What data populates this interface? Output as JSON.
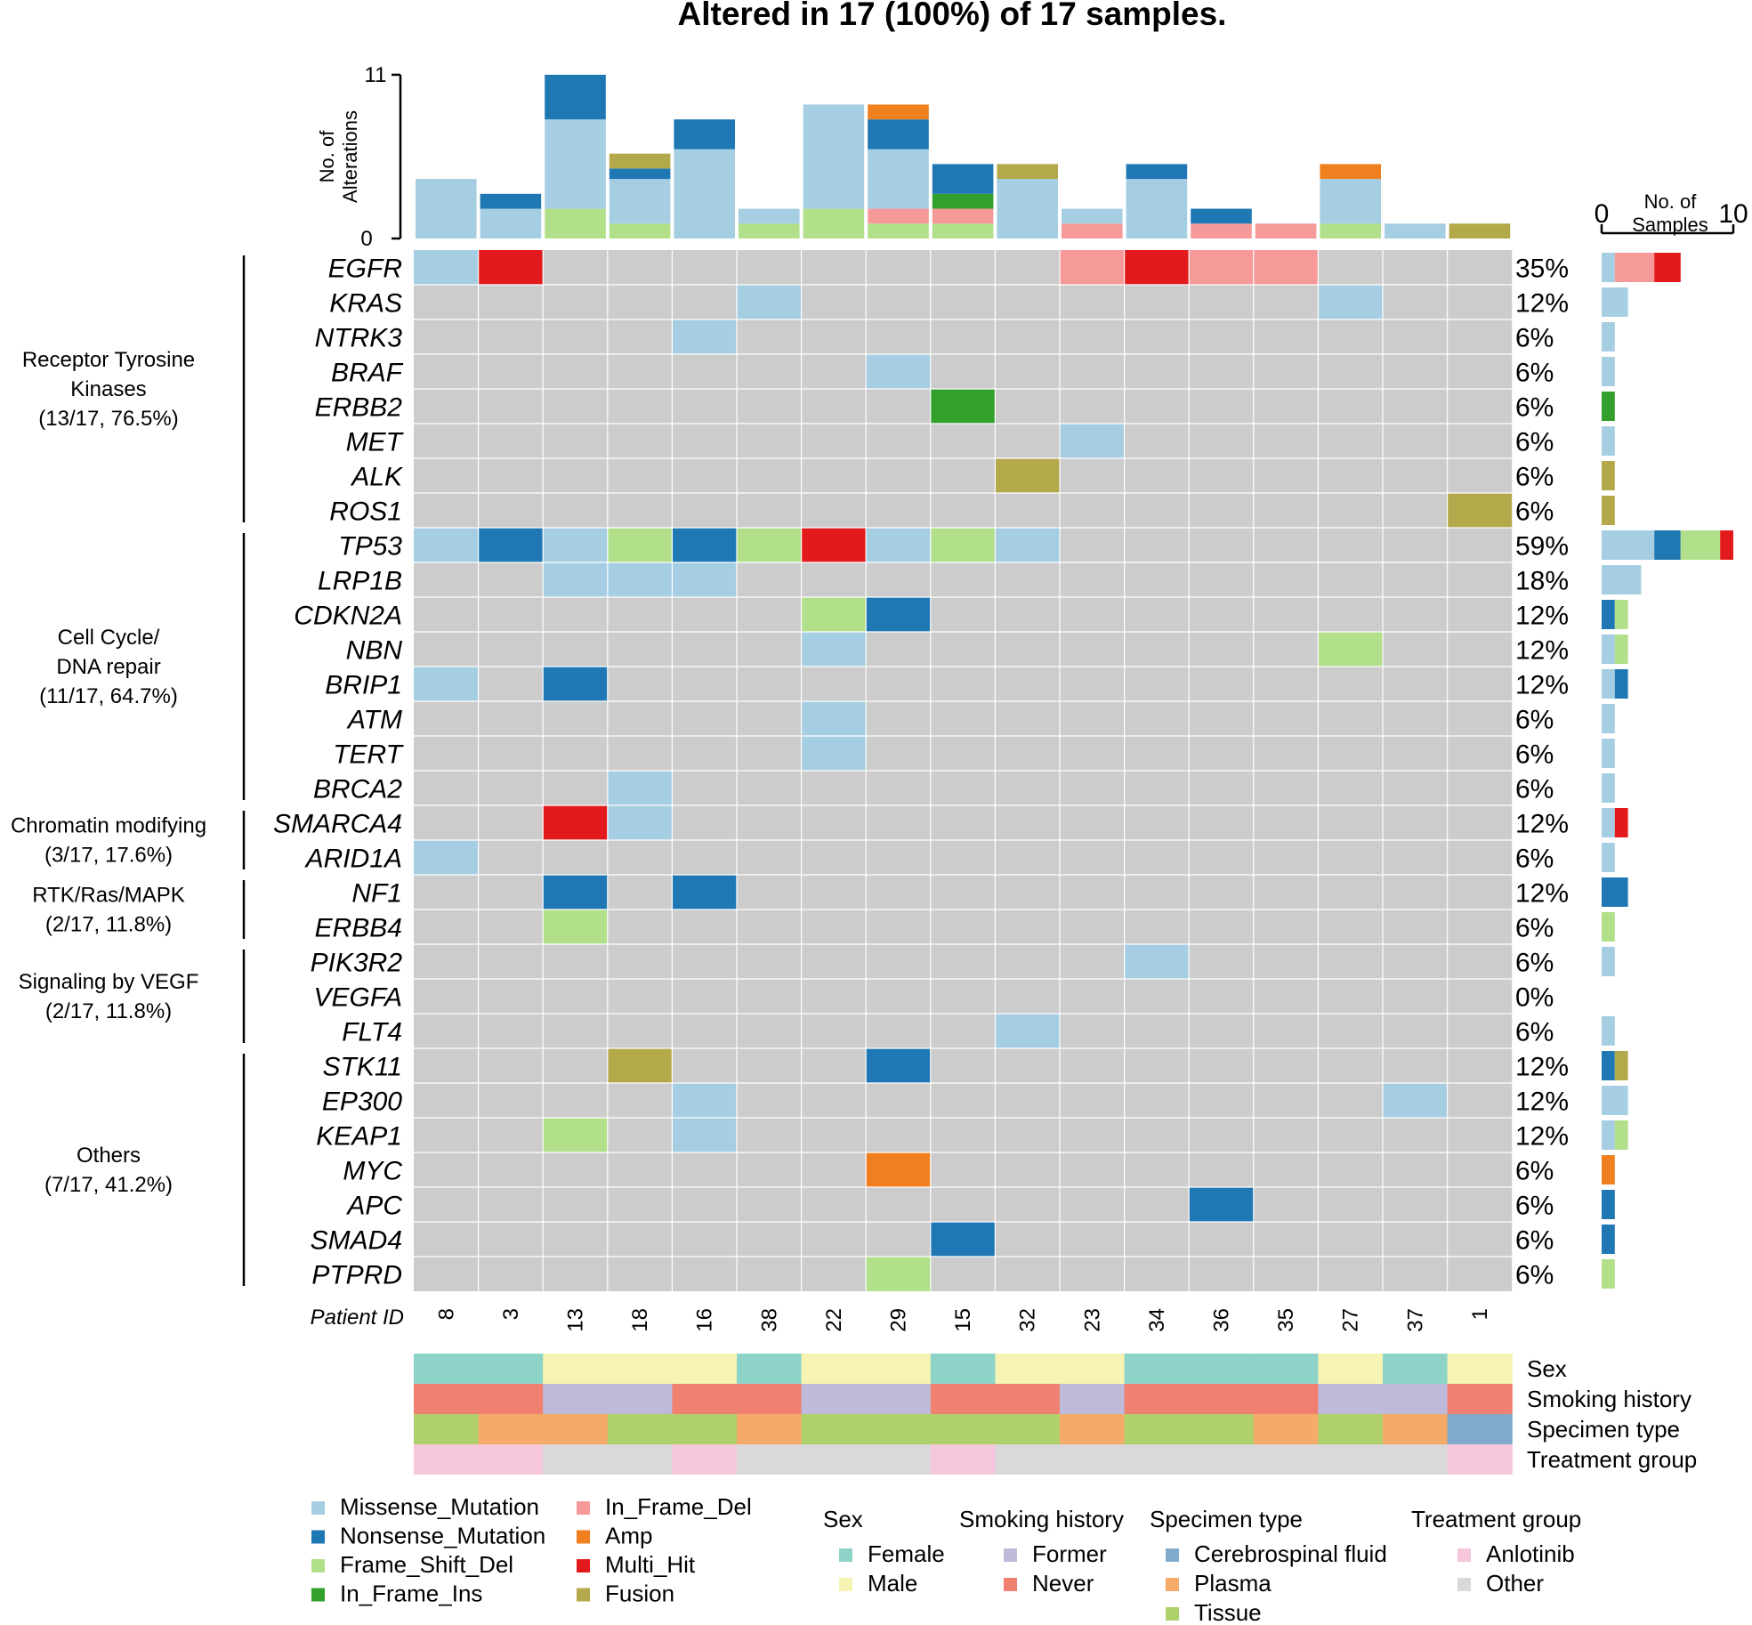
{
  "title": "Altered in 17 (100%) of 17 samples.",
  "colors": {
    "Missense_Mutation": "#a6cee3",
    "Nonsense_Mutation": "#1f78b4",
    "Frame_Shift_Del": "#b2df8a",
    "In_Frame_Ins": "#33a02c",
    "In_Frame_Del": "#f59999",
    "Amp": "#f07f1f",
    "Multi_Hit": "#e31a1c",
    "Fusion": "#b4a94a",
    "background": "#cccccc",
    "Female": "#8dd3c7",
    "Male": "#f7f4b3",
    "Former": "#bebada",
    "Never": "#f08070",
    "Cerebrospinal fluid": "#80aacc",
    "Plasma": "#f4aa68",
    "Tissue": "#aed16b",
    "Anlotinib": "#f5c6dc",
    "Other": "#d9d9d9"
  },
  "chart_data": {
    "type": "heatmap",
    "subtype": "oncoplot",
    "title": "Altered in 17 (100%) of 17 samples.",
    "samples": [
      "8",
      "3",
      "13",
      "18",
      "16",
      "38",
      "22",
      "29",
      "15",
      "32",
      "23",
      "34",
      "36",
      "35",
      "27",
      "37",
      "1"
    ],
    "sample_axis_label": "Patient ID",
    "variant_types": [
      "Missense_Mutation",
      "Nonsense_Mutation",
      "Frame_Shift_Del",
      "In_Frame_Ins",
      "In_Frame_Del",
      "Amp",
      "Multi_Hit",
      "Fusion"
    ],
    "top_bar": {
      "ylabel_line1": "No. of",
      "ylabel_line2": "Alterations",
      "ylim": [
        0,
        11
      ],
      "ticks": [
        "0",
        "11"
      ],
      "stack_order": [
        "Frame_Shift_Del",
        "In_Frame_Del",
        "In_Frame_Ins",
        "Missense_Mutation",
        "Nonsense_Mutation",
        "Fusion",
        "Amp"
      ],
      "values": {
        "8": {
          "Missense_Mutation": 4
        },
        "3": {
          "Missense_Mutation": 2,
          "Nonsense_Mutation": 1
        },
        "13": {
          "Frame_Shift_Del": 2,
          "Missense_Mutation": 6,
          "Nonsense_Mutation": 3
        },
        "18": {
          "Frame_Shift_Del": 1,
          "Missense_Mutation": 3,
          "Nonsense_Mutation": 0.7,
          "Fusion": 1
        },
        "16": {
          "Missense_Mutation": 6,
          "Nonsense_Mutation": 2
        },
        "38": {
          "Frame_Shift_Del": 1,
          "Missense_Mutation": 1
        },
        "22": {
          "Frame_Shift_Del": 2,
          "Missense_Mutation": 7
        },
        "29": {
          "Frame_Shift_Del": 1,
          "In_Frame_Del": 1,
          "Missense_Mutation": 4,
          "Nonsense_Mutation": 2,
          "Amp": 1
        },
        "15": {
          "Frame_Shift_Del": 1,
          "In_Frame_Del": 1,
          "In_Frame_Ins": 1,
          "Nonsense_Mutation": 2
        },
        "32": {
          "Missense_Mutation": 4,
          "Fusion": 1
        },
        "23": {
          "In_Frame_Del": 1,
          "Missense_Mutation": 1
        },
        "34": {
          "Missense_Mutation": 4,
          "Nonsense_Mutation": 1
        },
        "36": {
          "In_Frame_Del": 1,
          "Nonsense_Mutation": 1
        },
        "35": {
          "In_Frame_Del": 1
        },
        "27": {
          "Frame_Shift_Del": 1,
          "Missense_Mutation": 3,
          "Amp": 1
        },
        "37": {
          "Missense_Mutation": 1
        },
        "1": {
          "Fusion": 1
        }
      }
    },
    "side_bar": {
      "xlabel_line1": "No. of",
      "xlabel_line2": "Samples",
      "xlim": [
        0,
        10
      ],
      "ticks": [
        "0",
        "10"
      ]
    },
    "genes": [
      {
        "name": "EGFR",
        "pct": "35%",
        "cells": {
          "8": "Missense_Mutation",
          "3": "Multi_Hit",
          "23": "In_Frame_Del",
          "34": "Multi_Hit",
          "36": "In_Frame_Del",
          "35": "In_Frame_Del"
        },
        "side": [
          [
            "Missense_Mutation",
            1
          ],
          [
            "In_Frame_Del",
            3
          ],
          [
            "Multi_Hit",
            2
          ]
        ]
      },
      {
        "name": "KRAS",
        "pct": "12%",
        "cells": {
          "38": "Missense_Mutation",
          "27": "Missense_Mutation"
        },
        "side": [
          [
            "Missense_Mutation",
            2
          ]
        ]
      },
      {
        "name": "NTRK3",
        "pct": "6%",
        "cells": {
          "16": "Missense_Mutation"
        },
        "side": [
          [
            "Missense_Mutation",
            1
          ]
        ]
      },
      {
        "name": "BRAF",
        "pct": "6%",
        "cells": {
          "29": "Missense_Mutation"
        },
        "side": [
          [
            "Missense_Mutation",
            1
          ]
        ]
      },
      {
        "name": "ERBB2",
        "pct": "6%",
        "cells": {
          "15": "In_Frame_Ins"
        },
        "side": [
          [
            "In_Frame_Ins",
            1
          ]
        ]
      },
      {
        "name": "MET",
        "pct": "6%",
        "cells": {
          "23": "Missense_Mutation"
        },
        "side": [
          [
            "Missense_Mutation",
            1
          ]
        ]
      },
      {
        "name": "ALK",
        "pct": "6%",
        "cells": {
          "32": "Fusion"
        },
        "side": [
          [
            "Fusion",
            1
          ]
        ]
      },
      {
        "name": "ROS1",
        "pct": "6%",
        "cells": {
          "1": "Fusion"
        },
        "side": [
          [
            "Fusion",
            1
          ]
        ]
      },
      {
        "name": "TP53",
        "pct": "59%",
        "cells": {
          "8": "Missense_Mutation",
          "3": "Nonsense_Mutation",
          "13": "Missense_Mutation",
          "18": "Frame_Shift_Del",
          "16": "Nonsense_Mutation",
          "38": "Frame_Shift_Del",
          "22": "Multi_Hit",
          "29": "Missense_Mutation",
          "15": "Frame_Shift_Del",
          "32": "Missense_Mutation"
        },
        "side": [
          [
            "Missense_Mutation",
            4
          ],
          [
            "Nonsense_Mutation",
            2
          ],
          [
            "Frame_Shift_Del",
            3
          ],
          [
            "Multi_Hit",
            1
          ]
        ]
      },
      {
        "name": "LRP1B",
        "pct": "18%",
        "cells": {
          "13": "Missense_Mutation",
          "18": "Missense_Mutation",
          "16": "Missense_Mutation"
        },
        "side": [
          [
            "Missense_Mutation",
            3
          ]
        ]
      },
      {
        "name": "CDKN2A",
        "pct": "12%",
        "cells": {
          "22": "Frame_Shift_Del",
          "29": "Nonsense_Mutation"
        },
        "side": [
          [
            "Nonsense_Mutation",
            1
          ],
          [
            "Frame_Shift_Del",
            1
          ]
        ]
      },
      {
        "name": "NBN",
        "pct": "12%",
        "cells": {
          "22": "Missense_Mutation",
          "27": "Frame_Shift_Del"
        },
        "side": [
          [
            "Missense_Mutation",
            1
          ],
          [
            "Frame_Shift_Del",
            1
          ]
        ]
      },
      {
        "name": "BRIP1",
        "pct": "12%",
        "cells": {
          "8": "Missense_Mutation",
          "13": "Nonsense_Mutation"
        },
        "side": [
          [
            "Missense_Mutation",
            1
          ],
          [
            "Nonsense_Mutation",
            1
          ]
        ]
      },
      {
        "name": "ATM",
        "pct": "6%",
        "cells": {
          "22": "Missense_Mutation"
        },
        "side": [
          [
            "Missense_Mutation",
            1
          ]
        ]
      },
      {
        "name": "TERT",
        "pct": "6%",
        "cells": {
          "22": "Missense_Mutation"
        },
        "side": [
          [
            "Missense_Mutation",
            1
          ]
        ]
      },
      {
        "name": "BRCA2",
        "pct": "6%",
        "cells": {
          "18": "Missense_Mutation"
        },
        "side": [
          [
            "Missense_Mutation",
            1
          ]
        ]
      },
      {
        "name": "SMARCA4",
        "pct": "12%",
        "cells": {
          "13": "Multi_Hit",
          "18": "Missense_Mutation"
        },
        "side": [
          [
            "Missense_Mutation",
            1
          ],
          [
            "Multi_Hit",
            1
          ]
        ]
      },
      {
        "name": "ARID1A",
        "pct": "6%",
        "cells": {
          "8": "Missense_Mutation"
        },
        "side": [
          [
            "Missense_Mutation",
            1
          ]
        ]
      },
      {
        "name": "NF1",
        "pct": "12%",
        "cells": {
          "13": "Nonsense_Mutation",
          "16": "Nonsense_Mutation"
        },
        "side": [
          [
            "Nonsense_Mutation",
            2
          ]
        ]
      },
      {
        "name": "ERBB4",
        "pct": "6%",
        "cells": {
          "13": "Frame_Shift_Del"
        },
        "side": [
          [
            "Frame_Shift_Del",
            1
          ]
        ]
      },
      {
        "name": "PIK3R2",
        "pct": "6%",
        "cells": {
          "34": "Missense_Mutation"
        },
        "side": [
          [
            "Missense_Mutation",
            1
          ]
        ]
      },
      {
        "name": "VEGFA",
        "pct": "0%",
        "cells": {},
        "side": []
      },
      {
        "name": "FLT4",
        "pct": "6%",
        "cells": {
          "32": "Missense_Mutation"
        },
        "side": [
          [
            "Missense_Mutation",
            1
          ]
        ]
      },
      {
        "name": "STK11",
        "pct": "12%",
        "cells": {
          "18": "Fusion",
          "29": "Nonsense_Mutation"
        },
        "side": [
          [
            "Nonsense_Mutation",
            1
          ],
          [
            "Fusion",
            1
          ]
        ]
      },
      {
        "name": "EP300",
        "pct": "12%",
        "cells": {
          "16": "Missense_Mutation",
          "37": "Missense_Mutation"
        },
        "side": [
          [
            "Missense_Mutation",
            2
          ]
        ]
      },
      {
        "name": "KEAP1",
        "pct": "12%",
        "cells": {
          "13": "Frame_Shift_Del",
          "16": "Missense_Mutation"
        },
        "side": [
          [
            "Missense_Mutation",
            1
          ],
          [
            "Frame_Shift_Del",
            1
          ]
        ]
      },
      {
        "name": "MYC",
        "pct": "6%",
        "cells": {
          "29": "Amp"
        },
        "side": [
          [
            "Amp",
            1
          ]
        ]
      },
      {
        "name": "APC",
        "pct": "6%",
        "cells": {
          "36": "Nonsense_Mutation"
        },
        "side": [
          [
            "Nonsense_Mutation",
            1
          ]
        ]
      },
      {
        "name": "SMAD4",
        "pct": "6%",
        "cells": {
          "15": "Nonsense_Mutation"
        },
        "side": [
          [
            "Nonsense_Mutation",
            1
          ]
        ]
      },
      {
        "name": "PTPRD",
        "pct": "6%",
        "cells": {
          "29": "Frame_Shift_Del"
        },
        "side": [
          [
            "Frame_Shift_Del",
            1
          ]
        ]
      }
    ],
    "groups": [
      {
        "lines": [
          "Receptor Tyrosine",
          "Kinases",
          "(13/17, 76.5%)"
        ],
        "first_gene": 0,
        "last_gene": 7
      },
      {
        "lines": [
          "Cell Cycle/",
          "DNA repair",
          "(11/17, 64.7%)"
        ],
        "first_gene": 8,
        "last_gene": 15
      },
      {
        "lines": [
          "Chromatin modifying",
          "(3/17, 17.6%)"
        ],
        "first_gene": 16,
        "last_gene": 17
      },
      {
        "lines": [
          "RTK/Ras/MAPK",
          "(2/17, 11.8%)"
        ],
        "first_gene": 18,
        "last_gene": 19
      },
      {
        "lines": [
          "Signaling by VEGF",
          "(2/17, 11.8%)"
        ],
        "first_gene": 20,
        "last_gene": 22
      },
      {
        "lines": [
          "Others",
          "(7/17, 41.2%)"
        ],
        "first_gene": 23,
        "last_gene": 29
      }
    ],
    "tracks": [
      {
        "name": "Sex",
        "values": [
          "Female",
          "Female",
          "Male",
          "Male",
          "Male",
          "Female",
          "Male",
          "Male",
          "Female",
          "Male",
          "Male",
          "Female",
          "Female",
          "Female",
          "Male",
          "Female",
          "Male"
        ]
      },
      {
        "name": "Smoking history",
        "values": [
          "Never",
          "Never",
          "Former",
          "Former",
          "Never",
          "Never",
          "Former",
          "Former",
          "Never",
          "Never",
          "Former",
          "Never",
          "Never",
          "Never",
          "Former",
          "Former",
          "Never"
        ]
      },
      {
        "name": "Specimen type",
        "values": [
          "Tissue",
          "Plasma",
          "Plasma",
          "Tissue",
          "Tissue",
          "Plasma",
          "Tissue",
          "Tissue",
          "Tissue",
          "Tissue",
          "Plasma",
          "Tissue",
          "Tissue",
          "Plasma",
          "Tissue",
          "Plasma",
          "Cerebrospinal fluid"
        ]
      },
      {
        "name": "Treatment group",
        "values": [
          "Anlotinib",
          "Anlotinib",
          "Other",
          "Other",
          "Anlotinib",
          "Other",
          "Other",
          "Other",
          "Anlotinib",
          "Other",
          "Other",
          "Other",
          "Other",
          "Other",
          "Other",
          "Other",
          "Anlotinib"
        ]
      }
    ],
    "legend": {
      "variants_col1": [
        "Missense_Mutation",
        "Nonsense_Mutation",
        "Frame_Shift_Del",
        "In_Frame_Ins"
      ],
      "variants_col2": [
        "In_Frame_Del",
        "Amp",
        "Multi_Hit",
        "Fusion"
      ],
      "annotation_groups": [
        {
          "title": "Sex",
          "items": [
            "Female",
            "Male"
          ]
        },
        {
          "title": "Smoking history",
          "items": [
            "Former",
            "Never"
          ]
        },
        {
          "title": "Specimen type",
          "items": [
            "Cerebrospinal fluid",
            "Plasma",
            "Tissue"
          ]
        },
        {
          "title": "Treatment group",
          "items": [
            "Anlotinib",
            "Other"
          ]
        }
      ]
    }
  }
}
